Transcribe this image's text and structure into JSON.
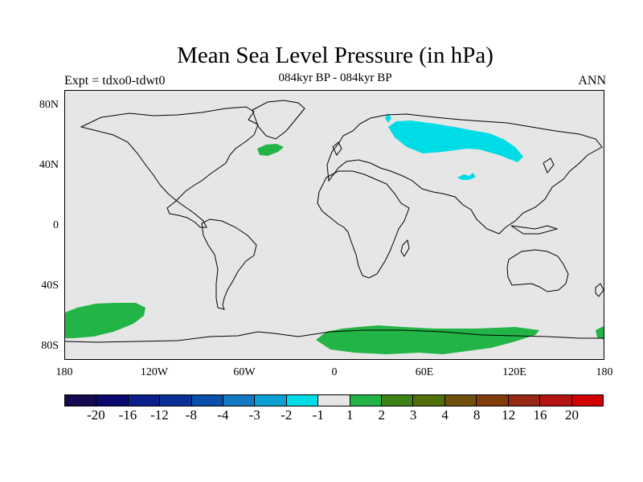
{
  "title": "Mean Sea Level Pressure (in hPa)",
  "subtitle": "084kyr BP - 084kyr BP",
  "left_string": "Expt = tdxo0-tdwt0",
  "right_string": "ANN",
  "lat_labels": [
    "80N",
    "40N",
    "0",
    "40S",
    "80S"
  ],
  "lon_labels": [
    "180",
    "120W",
    "60W",
    "0",
    "60E",
    "120E",
    "180"
  ],
  "colorbar": {
    "labels": [
      "-20",
      "-16",
      "-12",
      "-8",
      "-4",
      "-3",
      "-2",
      "-1",
      "1",
      "2",
      "3",
      "4",
      "8",
      "12",
      "16",
      "20"
    ],
    "colors": [
      "#140a50",
      "#0a0a6e",
      "#0a1e8c",
      "#0a3296",
      "#0a50aa",
      "#1478c3",
      "#0aa0d2",
      "#00dce6",
      "#e6e6e6",
      "#22b446",
      "#3c8214",
      "#506e0a",
      "#6e500a",
      "#823c0a",
      "#962814",
      "#b41414",
      "#d20000"
    ]
  },
  "colors": {
    "ocean_land_background": "#e6e6e6",
    "negative_anomaly": "#00dce6",
    "positive_anomaly": "#22b446",
    "coastline": "#000000"
  }
}
